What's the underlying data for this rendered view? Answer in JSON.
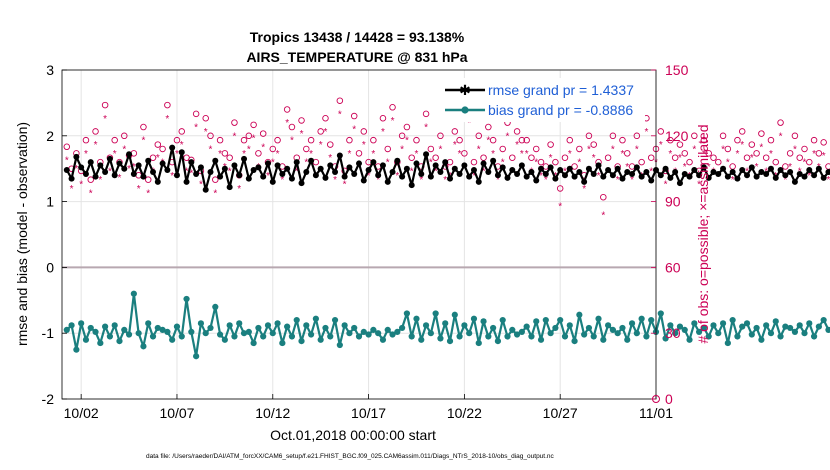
{
  "title_line1": "Tropics 13438 / 14428 = 93.138%",
  "title_line2": "AIRS_TEMPERATURE @ 831 hPa",
  "xlabel": "Oct.01,2018 00:00:00 start",
  "ylabel_left": "rmse and bias (model - observation)",
  "ylabel_right": "# of obs: o=possible; ×=assimilated",
  "footer": "data file: /Users/raeder/DAI/ATM_forcXX/CAM6_setup/f.e21.FHIST_BGC.f09_025.CAM6assim.011/Diags_NTrS_2018-10/obs_diag_output.nc",
  "legend": {
    "rmse_label": "rmse grand pr = 1.4337",
    "bias_label": "bias grand pr = -0.8886"
  },
  "colors": {
    "rmse": "#000000",
    "bias": "#1a7f7f",
    "obs": "#cc0055",
    "zero_line": "#b8a8b0",
    "grid": "#e4e4e4"
  },
  "chart_data": {
    "type": "line",
    "x_unit": "days since Oct.01,2018 00:00:00",
    "x_ticks": [
      {
        "value": 1,
        "label": "10/02"
      },
      {
        "value": 6,
        "label": "10/07"
      },
      {
        "value": 11,
        "label": "10/12"
      },
      {
        "value": 16,
        "label": "10/17"
      },
      {
        "value": 21,
        "label": "10/22"
      },
      {
        "value": 26,
        "label": "10/27"
      },
      {
        "value": 31,
        "label": "11/01"
      }
    ],
    "xlim": [
      0,
      31
    ],
    "ylim_left": [
      -2,
      3
    ],
    "y_ticks_left": [
      -2,
      -1,
      0,
      1,
      2,
      3
    ],
    "ylim_right": [
      0,
      150
    ],
    "y_ticks_right": [
      0,
      30,
      60,
      90,
      120,
      150
    ],
    "grid": true,
    "legend_position": "top-right",
    "series": [
      {
        "name": "rmse grand pr = 1.4337",
        "axis": "left",
        "step_hours": 6,
        "start": 0.25,
        "values": [
          1.48,
          1.35,
          1.68,
          1.52,
          1.42,
          1.6,
          1.38,
          1.55,
          1.45,
          1.65,
          1.4,
          1.58,
          1.5,
          1.72,
          1.42,
          1.55,
          1.38,
          1.62,
          1.45,
          1.3,
          1.58,
          1.48,
          1.82,
          1.4,
          1.75,
          1.3,
          1.6,
          1.42,
          1.52,
          1.18,
          1.45,
          1.62,
          1.38,
          1.5,
          1.22,
          1.55,
          1.4,
          1.65,
          1.35,
          1.48,
          1.52,
          1.38,
          1.58,
          1.3,
          1.55,
          1.42,
          1.5,
          1.35,
          1.6,
          1.28,
          1.45,
          1.62,
          1.4,
          1.5,
          1.36,
          1.55,
          1.45,
          1.7,
          1.38,
          1.52,
          1.42,
          1.58,
          1.32,
          1.48,
          1.6,
          1.4,
          1.55,
          1.3,
          1.45,
          1.62,
          1.38,
          1.5,
          1.25,
          1.58,
          1.42,
          1.72,
          1.38,
          1.55,
          1.45,
          1.6,
          1.35,
          1.5,
          1.42,
          1.55,
          1.38,
          1.48,
          1.3,
          1.58,
          1.45,
          1.62,
          1.4,
          1.52,
          1.36,
          1.48,
          1.42,
          1.55,
          1.38,
          1.45,
          1.32,
          1.5,
          1.42,
          1.52,
          1.35,
          1.48,
          1.4,
          1.5,
          1.38,
          1.45,
          1.3,
          1.5,
          1.42,
          1.55,
          1.38,
          1.48,
          1.4,
          1.5,
          1.35,
          1.45,
          1.42,
          1.52,
          1.38,
          1.45,
          1.32,
          1.48,
          1.4,
          1.5,
          1.36,
          1.45,
          1.28,
          1.42,
          1.38,
          1.48,
          1.4,
          1.52,
          1.36,
          1.45,
          1.42,
          1.5,
          1.38,
          1.45,
          1.35,
          1.48,
          1.4,
          1.52,
          1.38,
          1.45,
          1.42,
          1.5,
          1.36,
          1.48,
          1.4,
          1.45,
          1.3,
          1.42,
          1.38,
          1.48,
          1.4,
          1.5,
          1.36,
          1.45,
          1.42,
          1.48,
          1.38,
          1.45,
          1.42,
          1.5,
          1.35,
          1.45,
          1.38,
          1.48,
          1.4,
          1.46,
          1.36,
          1.45,
          1.4,
          1.48,
          1.38,
          1.44,
          1.2,
          1.42,
          1.38,
          1.45,
          1.32,
          1.48,
          1.4,
          1.5,
          1.36,
          1.45,
          1.42,
          1.48,
          1.38,
          1.45,
          1.35,
          1.42,
          1.38,
          1.48,
          1.4,
          1.45,
          1.32,
          1.42,
          1.38,
          1.45,
          1.28,
          1.35,
          1.25,
          1.4,
          1.3,
          1.28,
          1.32,
          1.25,
          1.3
        ]
      },
      {
        "name": "bias grand pr = -0.8886",
        "axis": "left",
        "step_hours": 6,
        "start": 0.25,
        "values": [
          -0.95,
          -0.88,
          -1.25,
          -0.85,
          -1.1,
          -0.92,
          -0.98,
          -1.15,
          -0.9,
          -1.05,
          -0.88,
          -1.12,
          -0.95,
          -1.02,
          -0.4,
          -1.0,
          -1.2,
          -0.85,
          -1.05,
          -0.92,
          -0.95,
          -0.98,
          -1.1,
          -0.9,
          -1.05,
          -0.48,
          -0.98,
          -1.35,
          -0.85,
          -1.0,
          -0.92,
          -0.6,
          -1.02,
          -1.1,
          -0.88,
          -1.05,
          -0.85,
          -1.0,
          -0.98,
          -1.15,
          -0.92,
          -1.05,
          -0.88,
          -1.0,
          -0.85,
          -1.15,
          -0.9,
          -1.05,
          -0.8,
          -1.12,
          -0.88,
          -1.02,
          -0.78,
          -1.1,
          -0.92,
          -1.05,
          -0.8,
          -1.18,
          -0.88,
          -1.0,
          -0.92,
          -1.05,
          -0.98,
          -1.02,
          -0.95,
          -1.0,
          -1.1,
          -0.95,
          -1.02,
          -0.98,
          -0.92,
          -0.7,
          -1.05,
          -0.78,
          -1.1,
          -0.88,
          -1.0,
          -0.7,
          -1.08,
          -0.85,
          -1.12,
          -0.72,
          -1.05,
          -0.88,
          -1.0,
          -0.78,
          -1.15,
          -0.82,
          -1.05,
          -0.92,
          -1.12,
          -0.8,
          -1.05,
          -0.95,
          -1.02,
          -0.98,
          -0.9,
          -1.05,
          -0.82,
          -1.1,
          -0.8,
          -1.0,
          -0.92,
          -0.8,
          -1.05,
          -0.88,
          -1.12,
          -0.72,
          -1.02,
          -0.92,
          -1.05,
          -0.78,
          -1.1,
          -0.88,
          -0.95,
          -1.0,
          -0.92,
          -1.1,
          -0.85,
          -1.0,
          -0.78,
          -1.05,
          -0.8,
          -0.98,
          -0.7,
          -1.08,
          -0.88,
          -1.0,
          -0.9,
          -0.95,
          -1.1,
          -0.85,
          -0.98,
          -0.92,
          -1.05,
          -0.88,
          -1.0,
          -0.85,
          -1.15,
          -0.8,
          -1.05,
          -0.9,
          -0.85,
          -1.02,
          -0.92,
          -1.1,
          -0.88,
          -1.0,
          -0.82,
          -1.05,
          -0.9,
          -0.92,
          -0.98,
          -0.88,
          -1.0,
          -0.85,
          -1.05,
          -0.9,
          -0.8,
          -0.95,
          -0.88,
          -1.0,
          -0.85,
          -0.92,
          -0.95,
          -1.05,
          -0.88,
          -0.95,
          -0.5,
          -0.8,
          -1.05,
          -0.98,
          -0.88,
          -0.95,
          -0.85,
          -0.55,
          -0.92,
          -0.98,
          -0.8,
          -1.02,
          -0.88,
          -0.92,
          -0.82,
          -0.95,
          -0.75,
          -0.9,
          -0.88,
          -0.98,
          -0.85,
          -0.92,
          -0.7,
          -1.0,
          -0.85,
          -0.9,
          -0.78,
          -0.92,
          -0.88,
          -0.82,
          -0.98,
          -0.9,
          -0.85,
          -0.92,
          -0.95,
          -0.78,
          -0.92,
          -0.95,
          -0.8,
          -0.85,
          -0.78,
          -0.82,
          -0.75
        ]
      },
      {
        "name": "possible",
        "axis": "right",
        "marker": "circle",
        "step_hours": 6,
        "start": 0.25,
        "values": [
          115,
          105,
          112,
          104,
          118,
          100,
          122,
          108,
          134,
          110,
          118,
          108,
          120,
          111,
          112,
          102,
          124,
          100,
          110,
          116,
          114,
          134,
          108,
          118,
          122,
          110,
          109,
          130,
          104,
          128,
          120,
          100,
          118,
          112,
          110,
          126,
          102,
          118,
          120,
          125,
          112,
          121,
          108,
          114,
          118,
          106,
          132,
          124,
          110,
          127,
          114,
          118,
          108,
          122,
          128,
          116,
          106,
          136,
          104,
          118,
          129,
          112,
          122,
          108,
          118,
          106,
          128,
          114,
          133,
          108,
          120,
          124,
          110,
          118,
          106,
          130,
          114,
          110,
          120,
          106,
          108,
          122,
          118,
          112,
          132,
          108,
          120,
          110,
          124,
          118,
          106,
          114,
          126,
          110,
          122,
          118,
          118,
          110,
          114,
          108,
          106,
          116,
          108,
          96,
          110,
          118,
          106,
          114,
          102,
          120,
          116,
          108,
          92,
          110,
          120,
          106,
          118,
          112,
          106,
          120,
          108,
          128,
          110,
          114,
          122,
          104,
          118,
          110,
          116,
          112,
          108,
          120,
          104,
          118,
          112,
          110,
          108,
          120,
          114,
          106,
          118,
          122,
          110,
          116,
          112,
          121,
          110,
          118,
          108,
          126,
          106,
          112,
          120,
          110,
          114,
          108,
          118,
          112,
          117,
          106,
          124,
          110,
          112,
          104,
          120,
          114,
          108,
          116,
          110,
          118,
          112,
          106,
          114,
          118,
          110,
          108,
          112,
          116,
          106,
          110,
          118,
          114,
          108,
          112,
          116,
          110,
          108,
          114,
          106,
          112,
          116,
          110,
          108,
          114,
          106,
          112,
          108,
          104,
          110,
          116,
          106,
          112,
          108,
          100,
          104,
          108,
          102,
          98,
          96,
          92
        ]
      },
      {
        "name": "assimilated",
        "axis": "right",
        "marker": "asterisk",
        "step_hours": 6,
        "start": 0.25,
        "values": [
          109,
          96,
          105,
          98,
          112,
          94,
          116,
          100,
          128,
          104,
          112,
          101,
          114,
          105,
          106,
          96,
          118,
          94,
          104,
          110,
          108,
          128,
          102,
          112,
          116,
          104,
          103,
          124,
          98,
          122,
          114,
          94,
          112,
          106,
          104,
          120,
          96,
          112,
          114,
          119,
          106,
          115,
          102,
          108,
          112,
          100,
          126,
          118,
          104,
          121,
          108,
          112,
          102,
          116,
          122,
          110,
          100,
          130,
          98,
          112,
          123,
          106,
          116,
          102,
          112,
          100,
          122,
          108,
          127,
          102,
          114,
          118,
          104,
          112,
          100,
          124,
          108,
          104,
          114,
          100,
          102,
          116,
          112,
          106,
          126,
          102,
          114,
          104,
          118,
          112,
          100,
          108,
          120,
          104,
          116,
          112,
          112,
          104,
          108,
          102,
          100,
          110,
          102,
          88,
          104,
          112,
          100,
          108,
          96,
          114,
          110,
          102,
          84,
          104,
          114,
          100,
          112,
          106,
          100,
          114,
          102,
          122,
          104,
          108,
          116,
          98,
          112,
          104,
          110,
          106,
          102,
          114,
          98,
          112,
          106,
          104,
          102,
          114,
          108,
          100,
          112,
          116,
          104,
          110,
          106,
          115,
          104,
          112,
          102,
          120,
          100,
          106,
          114,
          104,
          108,
          102,
          112,
          106,
          111,
          100,
          118,
          104,
          106,
          98,
          114,
          108,
          102,
          110,
          104,
          112,
          106,
          100,
          108,
          112,
          104,
          102,
          106,
          110,
          100,
          104,
          112,
          108,
          102,
          106,
          110,
          104,
          102,
          108,
          100,
          106,
          110,
          104,
          102,
          108,
          100,
          106,
          102,
          98,
          104,
          110,
          100,
          106,
          102,
          94,
          98,
          102,
          96,
          92,
          90,
          88
        ]
      }
    ]
  }
}
